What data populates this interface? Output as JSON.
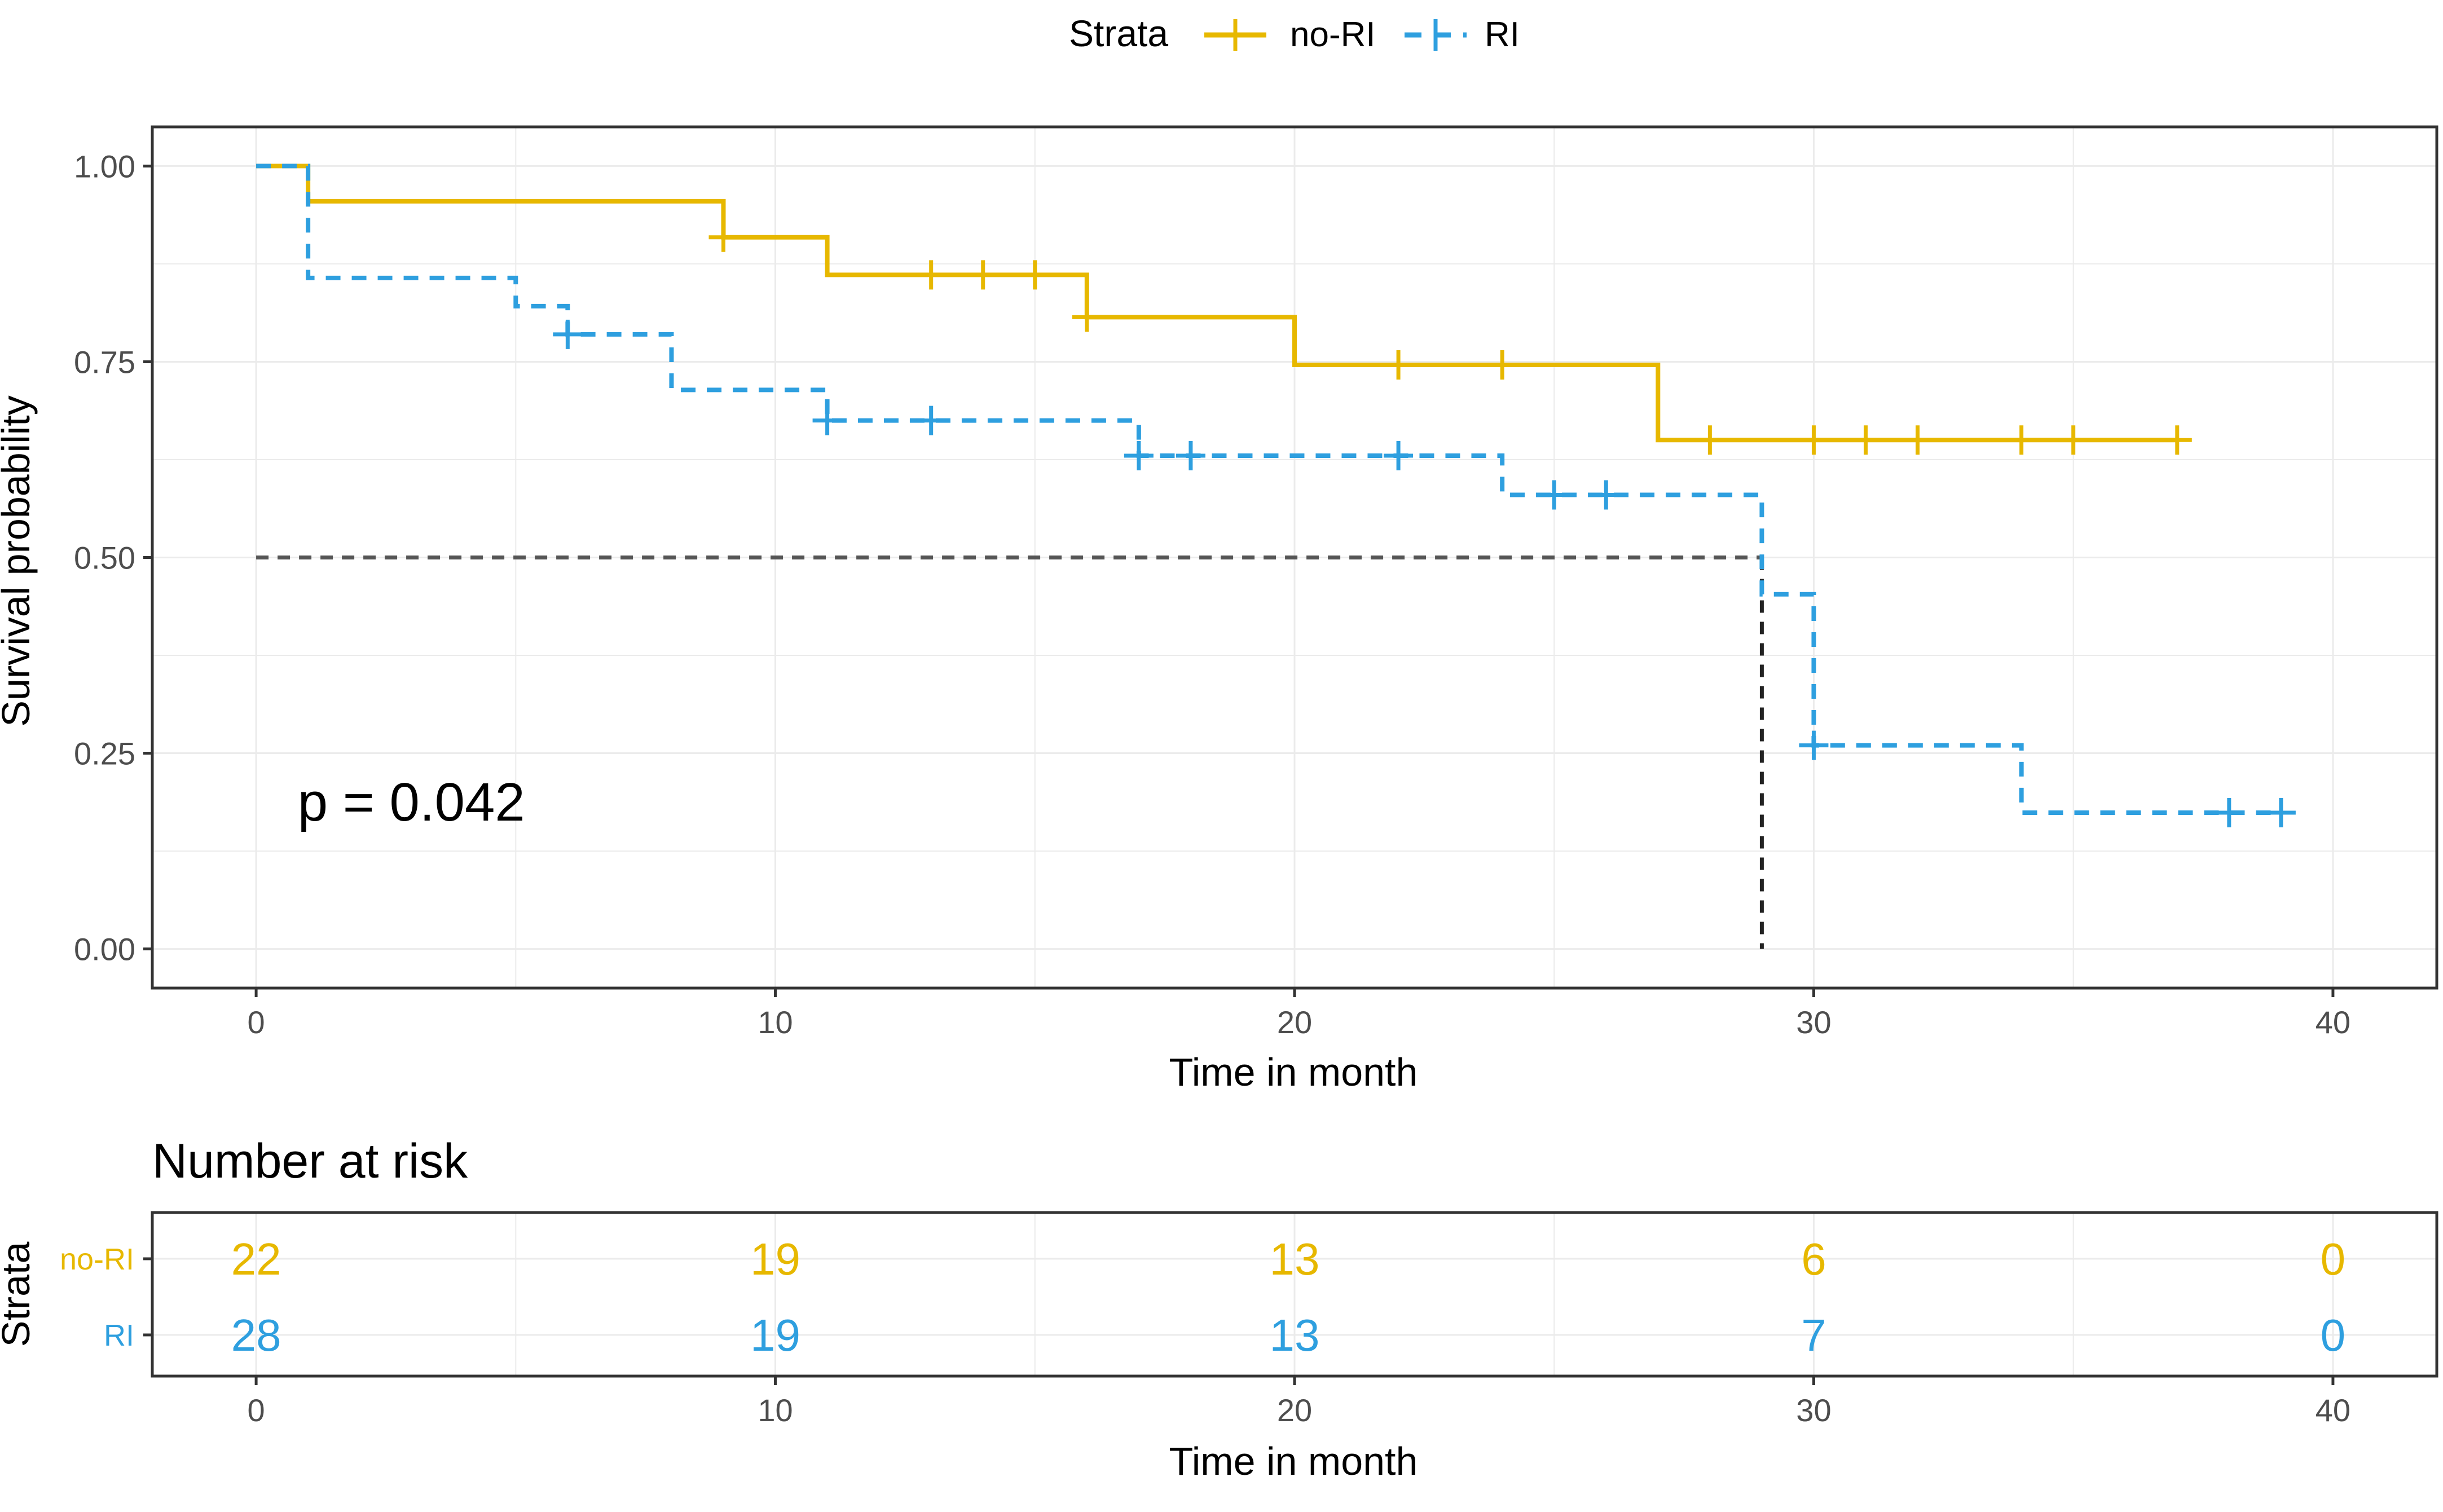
{
  "chart_data": {
    "type": "line",
    "subtype": "kaplan-meier",
    "legend": {
      "title": "Strata",
      "position": "top",
      "entries": [
        "no-RI",
        "RI"
      ]
    },
    "colors": {
      "no-RI": "#E7B800",
      "RI": "#2E9FDF",
      "median_line": "#555555",
      "axis": "#333333",
      "grid": "#ebebeb",
      "text": "#000000",
      "tick_text": "#4d4d4d"
    },
    "xlabel": "Time in month",
    "ylabel": "Survival probability",
    "xlim": [
      -2,
      42
    ],
    "ylim": [
      -0.05,
      1.05
    ],
    "x_ticks": [
      0,
      10,
      20,
      30,
      40
    ],
    "x_tick_labels": [
      "0",
      "10",
      "20",
      "30",
      "40"
    ],
    "y_ticks": [
      0,
      0.25,
      0.5,
      0.75,
      1
    ],
    "y_tick_labels": [
      "0.00",
      "0.25",
      "0.50",
      "0.75",
      "1.00"
    ],
    "pvalue_text": "p = 0.042",
    "pvalue_position": {
      "x": 0.8,
      "y": 0.19
    },
    "median_line": {
      "y": 0.5,
      "x_end": 29
    },
    "series": [
      {
        "name": "no-RI",
        "line_style": "solid",
        "steps": [
          [
            0,
            1.0
          ],
          [
            1,
            0.955
          ],
          [
            9,
            0.909
          ],
          [
            11,
            0.861
          ],
          [
            16,
            0.807
          ],
          [
            20,
            0.746
          ],
          [
            27,
            0.65
          ],
          [
            37,
            0.65
          ]
        ],
        "censor_times": [
          9,
          13,
          14,
          15,
          16,
          22,
          24,
          28,
          30,
          31,
          32,
          34,
          35,
          37
        ]
      },
      {
        "name": "RI",
        "line_style": "dashed",
        "steps": [
          [
            0,
            1.0
          ],
          [
            1,
            0.857
          ],
          [
            5,
            0.821
          ],
          [
            6,
            0.785
          ],
          [
            8,
            0.714
          ],
          [
            11,
            0.675
          ],
          [
            17,
            0.63
          ],
          [
            24,
            0.58
          ],
          [
            29,
            0.453
          ],
          [
            30,
            0.26
          ],
          [
            34,
            0.174
          ],
          [
            39,
            0.174
          ]
        ],
        "censor_times": [
          6,
          11,
          13,
          17,
          18,
          22,
          25,
          26,
          30,
          38,
          39
        ]
      }
    ],
    "risk_table": {
      "title": "Number at risk",
      "ylabel": "Strata",
      "xlabel": "Time in month",
      "times": [
        0,
        10,
        20,
        30,
        40
      ],
      "x_tick_labels": [
        "0",
        "10",
        "20",
        "30",
        "40"
      ],
      "rows": [
        {
          "name": "no-RI",
          "values": [
            "22",
            "19",
            "13",
            "6",
            "0"
          ]
        },
        {
          "name": "RI",
          "values": [
            "28",
            "19",
            "13",
            "7",
            "0"
          ]
        }
      ]
    }
  }
}
